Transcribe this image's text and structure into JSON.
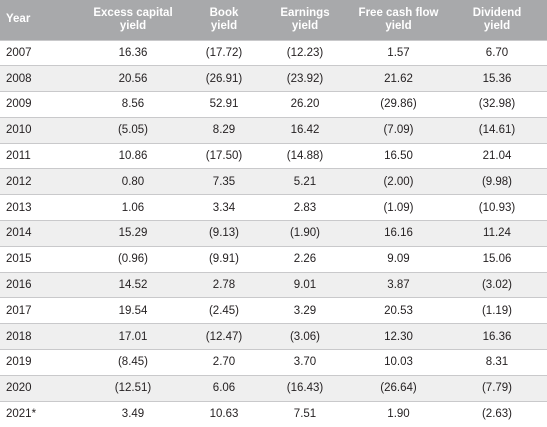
{
  "table": {
    "headers": [
      [
        "Year"
      ],
      [
        "Excess capital",
        "yield"
      ],
      [
        "Book",
        "yield"
      ],
      [
        "Earnings",
        "yield"
      ],
      [
        "Free cash flow",
        "yield"
      ],
      [
        "Dividend",
        "yield"
      ]
    ],
    "rows": [
      [
        "2007",
        "16.36",
        "(17.72)",
        "(12.23)",
        "1.57",
        "6.70"
      ],
      [
        "2008",
        "20.56",
        "(26.91)",
        "(23.92)",
        "21.62",
        "15.36"
      ],
      [
        "2009",
        "8.56",
        "52.91",
        "26.20",
        "(29.86)",
        "(32.98)"
      ],
      [
        "2010",
        "(5.05)",
        "8.29",
        "16.42",
        "(7.09)",
        "(14.61)"
      ],
      [
        "2011",
        "10.86",
        "(17.50)",
        "(14.88)",
        "16.50",
        "21.04"
      ],
      [
        "2012",
        "0.80",
        "7.35",
        "5.21",
        "(2.00)",
        "(9.98)"
      ],
      [
        "2013",
        "1.06",
        "3.34",
        "2.83",
        "(1.09)",
        "(10.93)"
      ],
      [
        "2014",
        "15.29",
        "(9.13)",
        "(1.90)",
        "16.16",
        "11.24"
      ],
      [
        "2015",
        "(0.96)",
        "(9.91)",
        "2.26",
        "9.09",
        "15.06"
      ],
      [
        "2016",
        "14.52",
        "2.78",
        "9.01",
        "3.87",
        "(3.02)"
      ],
      [
        "2017",
        "19.54",
        "(2.45)",
        "3.29",
        "20.53",
        "(1.19)"
      ],
      [
        "2018",
        "17.01",
        "(12.47)",
        "(3.06)",
        "12.30",
        "16.36"
      ],
      [
        "2019",
        "(8.45)",
        "2.70",
        "3.70",
        "10.03",
        "8.31"
      ],
      [
        "2020",
        "(12.51)",
        "6.06",
        "(16.43)",
        "(26.64)",
        "(7.79)"
      ],
      [
        "2021*",
        "3.49",
        "10.63",
        "7.51",
        "1.90",
        "(2.63)"
      ]
    ]
  },
  "colors": {
    "header_bg": "#a8a9ab",
    "header_text": "#ffffff",
    "stripe": "#efefef",
    "rule": "#c9c9cb",
    "text": "#231f20"
  }
}
